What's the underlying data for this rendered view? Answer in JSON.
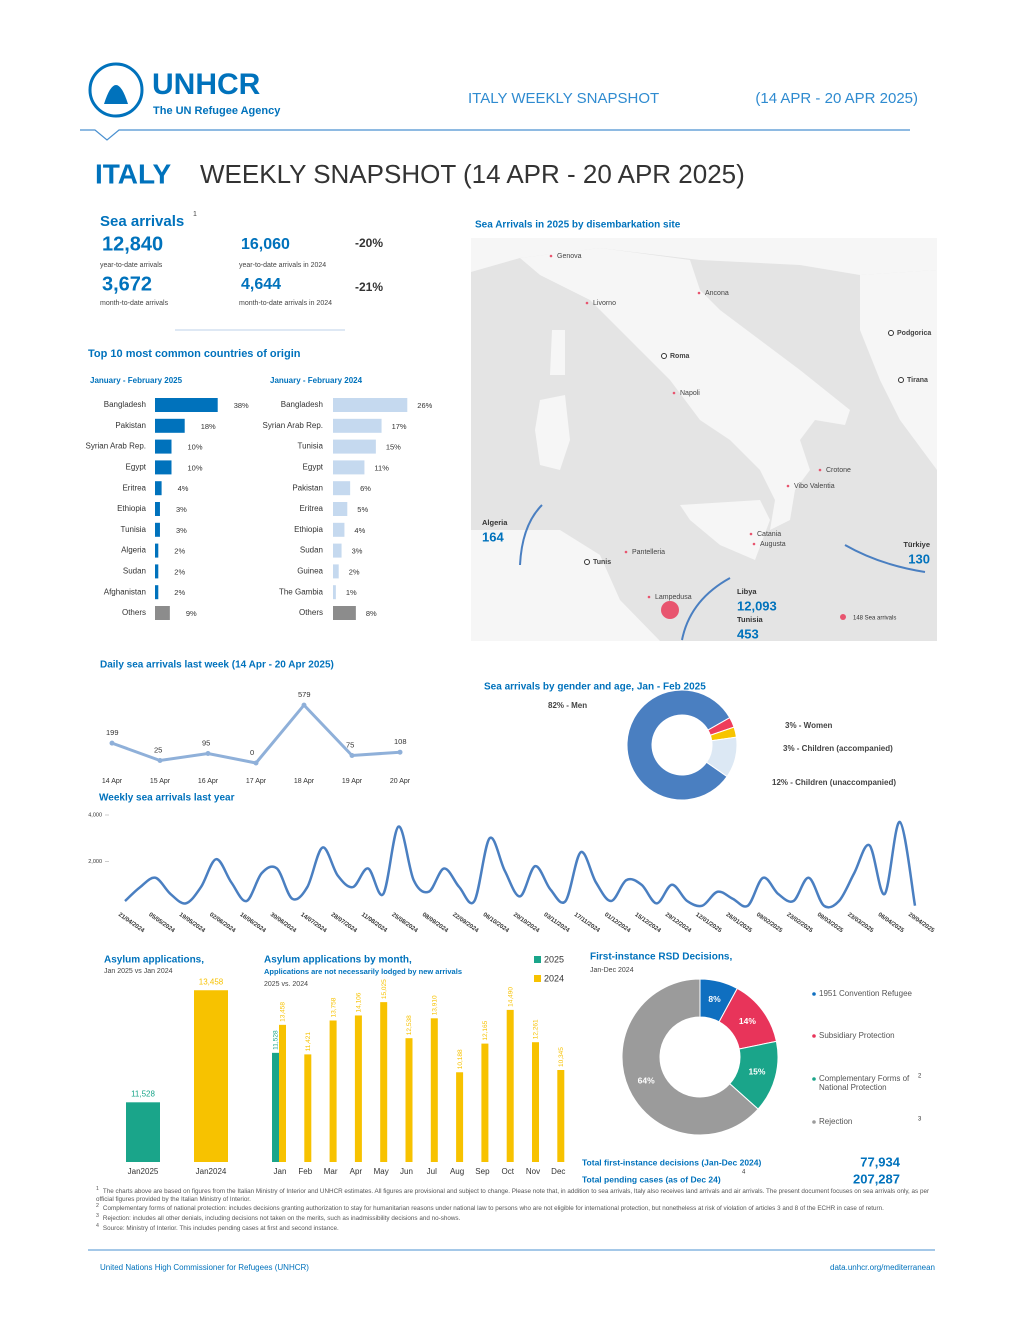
{
  "header": {
    "logo_name": "UNHCR",
    "logo_tagline": "The UN Refugee Agency",
    "snapshot": "ITALY WEEKLY SNAPSHOT",
    "period": "(14 APR - 20 APR 2025)"
  },
  "title": {
    "country": "ITALY",
    "text": "WEEKLY SNAPSHOT (14 APR - 20 APR 2025)"
  },
  "sea_arrivals": {
    "title": "Sea arrivals",
    "footnote": "1",
    "stats": [
      {
        "value": "12,840",
        "label": "year-to-date arrivals"
      },
      {
        "value": "16,060",
        "label": "year-to-date arrivals in 2024",
        "change": "-20%"
      },
      {
        "value": "3,672",
        "label": "month-to-date arrivals"
      },
      {
        "value": "4,644",
        "label": "month-to-date arrivals in 2024",
        "change": "-21%"
      }
    ]
  },
  "origins": {
    "title": "Top 10 most common countries of origin",
    "charts": [
      {
        "type": "bar",
        "title": "January - February 2025",
        "categories": [
          "Bangladesh",
          "Pakistan",
          "Syrian Arab Rep.",
          "Egypt",
          "Eritrea",
          "Ethiopia",
          "Tunisia",
          "Algeria",
          "Sudan",
          "Afghanistan",
          "Others"
        ],
        "values": [
          38,
          18,
          10,
          10,
          4,
          3,
          3,
          2,
          2,
          2,
          9
        ],
        "value_labels": [
          "38%",
          "18%",
          "10%",
          "10%",
          "4%",
          "3%",
          "3%",
          "2%",
          "2%",
          "2%",
          "9%"
        ],
        "colors": [
          "#0072bc",
          "#0072bc",
          "#0072bc",
          "#0072bc",
          "#0072bc",
          "#0072bc",
          "#0072bc",
          "#0072bc",
          "#0072bc",
          "#0072bc",
          "#8c8c8c"
        ],
        "xlim": [
          0,
          40
        ]
      },
      {
        "type": "bar",
        "title": "January - February 2024",
        "categories": [
          "Bangladesh",
          "Syrian Arab Rep.",
          "Tunisia",
          "Egypt",
          "Pakistan",
          "Eritrea",
          "Ethiopia",
          "Sudan",
          "Guinea",
          "The Gambia",
          "Others"
        ],
        "values": [
          26,
          17,
          15,
          11,
          6,
          5,
          4,
          3,
          2,
          1,
          8
        ],
        "value_labels": [
          "26%",
          "17%",
          "15%",
          "11%",
          "6%",
          "5%",
          "4%",
          "3%",
          "2%",
          "1%",
          "8%"
        ],
        "colors": [
          "#c5d9ef",
          "#c5d9ef",
          "#c5d9ef",
          "#c5d9ef",
          "#c5d9ef",
          "#c5d9ef",
          "#c5d9ef",
          "#c5d9ef",
          "#c5d9ef",
          "#c5d9ef",
          "#8c8c8c"
        ],
        "xlim": [
          0,
          28
        ]
      }
    ]
  },
  "daily": {
    "type": "line",
    "title": "Daily sea arrivals last week (14 Apr - 20 Apr 2025)",
    "categories": [
      "14 Apr",
      "15 Apr",
      "16 Apr",
      "17 Apr",
      "18 Apr",
      "19 Apr",
      "20 Apr"
    ],
    "values": [
      199,
      25,
      95,
      0,
      579,
      75,
      108
    ],
    "ylim": [
      0,
      600
    ],
    "color": "#8fb0d9"
  },
  "weekly": {
    "type": "line",
    "title": "Weekly sea arrivals last year",
    "ylim": [
      0,
      4000
    ],
    "yticks": [
      {
        "value": 2000,
        "label": "2,000"
      },
      {
        "value": 4000,
        "label": "4,000"
      }
    ],
    "color": "#4a7fc1",
    "categories": [
      "21/04/2024",
      null,
      "05/05/2024",
      null,
      "19/05/2024",
      null,
      "02/06/2024",
      null,
      "16/06/2024",
      null,
      "30/06/2024",
      null,
      "14/07/2024",
      null,
      "28/07/2024",
      null,
      "11/08/2024",
      null,
      "25/08/2024",
      null,
      "08/09/2024",
      null,
      "22/09/2024",
      null,
      "06/10/2024",
      null,
      "20/10/2024",
      null,
      "03/11/2024",
      null,
      "17/11/2024",
      null,
      "01/12/2024",
      null,
      "15/12/2024",
      null,
      "29/12/2024",
      null,
      "12/01/2025",
      null,
      "26/01/2025",
      null,
      "09/02/2025",
      null,
      "23/02/2025",
      null,
      "09/03/2025",
      null,
      "23/03/2025",
      null,
      "06/04/2025",
      null,
      "20/04/2025"
    ],
    "values": [
      300,
      900,
      1300,
      600,
      200,
      900,
      2100,
      1100,
      300,
      1500,
      1700,
      400,
      900,
      2600,
      1400,
      900,
      1700,
      600,
      3500,
      1200,
      700,
      1700,
      900,
      300,
      3000,
      1600,
      500,
      1800,
      800,
      300,
      2400,
      1100,
      300,
      1200,
      1000,
      200,
      1000,
      300,
      100,
      700,
      400,
      100,
      1300,
      600,
      300,
      1300,
      100,
      300,
      1500,
      2700,
      600,
      3700,
      100
    ]
  },
  "map": {
    "title": "Sea Arrivals in 2025 by disembarkation site",
    "places": [
      "Genova",
      "Livorno",
      "Ancona",
      "Roma",
      "Napoli",
      "Podgorica",
      "Tirana",
      "Crotone",
      "Vibo Valentia",
      "Catania",
      "Augusta",
      "Pantelleria",
      "Tunis",
      "Lampedusa"
    ],
    "origins": [
      {
        "name": "Algeria",
        "value": "164"
      },
      {
        "name": "Türkiye",
        "value": "130"
      },
      {
        "name": "Libya",
        "value": "12,093"
      },
      {
        "name": "Tunisia",
        "value": "453"
      }
    ],
    "legend": "148 Sea arrivals"
  },
  "gender": {
    "type": "pie",
    "title": "Sea arrivals by gender and age, Jan - Feb 2025",
    "values": [
      82,
      3,
      3,
      12
    ],
    "value_labels": [
      "82% - Men",
      "3% - Women",
      "3% - Children (accompanied)",
      "12% - Children (unaccompanied)"
    ],
    "colors": [
      "#4a7fc1",
      "#ef3d5a",
      "#f7c400",
      "#dce8f4"
    ]
  },
  "asylum_jan": {
    "type": "bar",
    "title": "Asylum applications,",
    "subtitle": "Jan 2025 vs Jan 2024",
    "categories": [
      "Jan2025",
      "Jan2024"
    ],
    "values": [
      11528,
      13458
    ],
    "value_labels": [
      "11,528",
      "13,458"
    ],
    "colors": [
      "#1aa58a",
      "#f7c200"
    ],
    "ylim": [
      10500,
      13600
    ]
  },
  "asylum_monthly": {
    "type": "bar",
    "title": "Asylum applications by month,",
    "subtitle": "Applications are not necessarily lodged by new arrivals",
    "comparison": "2025 vs. 2024",
    "categories": [
      "Jan",
      "Feb",
      "Mar",
      "Apr",
      "May",
      "Jun",
      "Jul",
      "Aug",
      "Sep",
      "Oct",
      "Nov",
      "Dec"
    ],
    "ylim": [
      4000,
      16000
    ],
    "series": [
      {
        "name": "2025",
        "color": "#1aa58a",
        "values": [
          11528,
          null,
          null,
          null,
          null,
          null,
          null,
          null,
          null,
          null,
          null,
          null
        ],
        "value_labels": [
          "11,528",
          null,
          null,
          null,
          null,
          null,
          null,
          null,
          null,
          null,
          null,
          null
        ]
      },
      {
        "name": "2024",
        "color": "#f7c200",
        "values": [
          13458,
          11421,
          13758,
          14106,
          15025,
          12538,
          13910,
          10188,
          12165,
          14490,
          12261,
          10345
        ],
        "value_labels": [
          "13,458",
          "11,421",
          "13,758",
          "14,106",
          "15,025",
          "12,538",
          "13,910",
          "10,188",
          "12,165",
          "14,490",
          "12,261",
          "10,345"
        ]
      }
    ]
  },
  "rsd": {
    "type": "pie",
    "title": "First-instance RSD Decisions,",
    "subtitle": "Jan-Dec 2024",
    "categories": [
      "1951 Convention Refugee",
      "Subsidiary Protection",
      "Complementary Forms of National Protection",
      "Rejection"
    ],
    "legend_notes": [
      null,
      null,
      "2",
      "3"
    ],
    "values": [
      8,
      14,
      15,
      64
    ],
    "value_labels": [
      "8%",
      "14%",
      "15%",
      "64%"
    ],
    "colors": [
      "#0f6fc0",
      "#e8345a",
      "#1aa58a",
      "#9b9b9b"
    ]
  },
  "totals": [
    {
      "label": "Total first-instance decisions (Jan-Dec 2024)",
      "note": null,
      "value": "77,934"
    },
    {
      "label": "Total pending cases (as of Dec 24)",
      "note": "4",
      "value": "207,287"
    }
  ],
  "footnotes": [
    {
      "number": "1",
      "text": "The charts above are based on figures from the Italian Ministry of Interior and UNHCR estimates. All figures are provisional and subject to change. Please note that, in addition to sea arrivals, Italy also receives land arrivals and air arrivals. The present document focuses on sea arrivals only, as per official figures provided by the Italian Ministry of Interior."
    },
    {
      "number": "2",
      "text": "Complementary forms of national protection: includes decisions granting authorization to stay for humanitarian reasons under national law to persons who are not eligible for international protection, but nonetheless at risk of violation of articles 3 and 8 of the ECHR in case of return."
    },
    {
      "number": "3",
      "text": "Rejection: includes all other denials, including decisions not taken on the merits, such as inadmissibility decisions and no-shows."
    },
    {
      "number": "4",
      "text": "Source: Ministry of Interior. This includes pending cases at first and second instance."
    }
  ],
  "footer": {
    "left": "United Nations High Commissioner for Refugees (UNHCR)",
    "right": "data.unhcr.org/mediterranean"
  }
}
